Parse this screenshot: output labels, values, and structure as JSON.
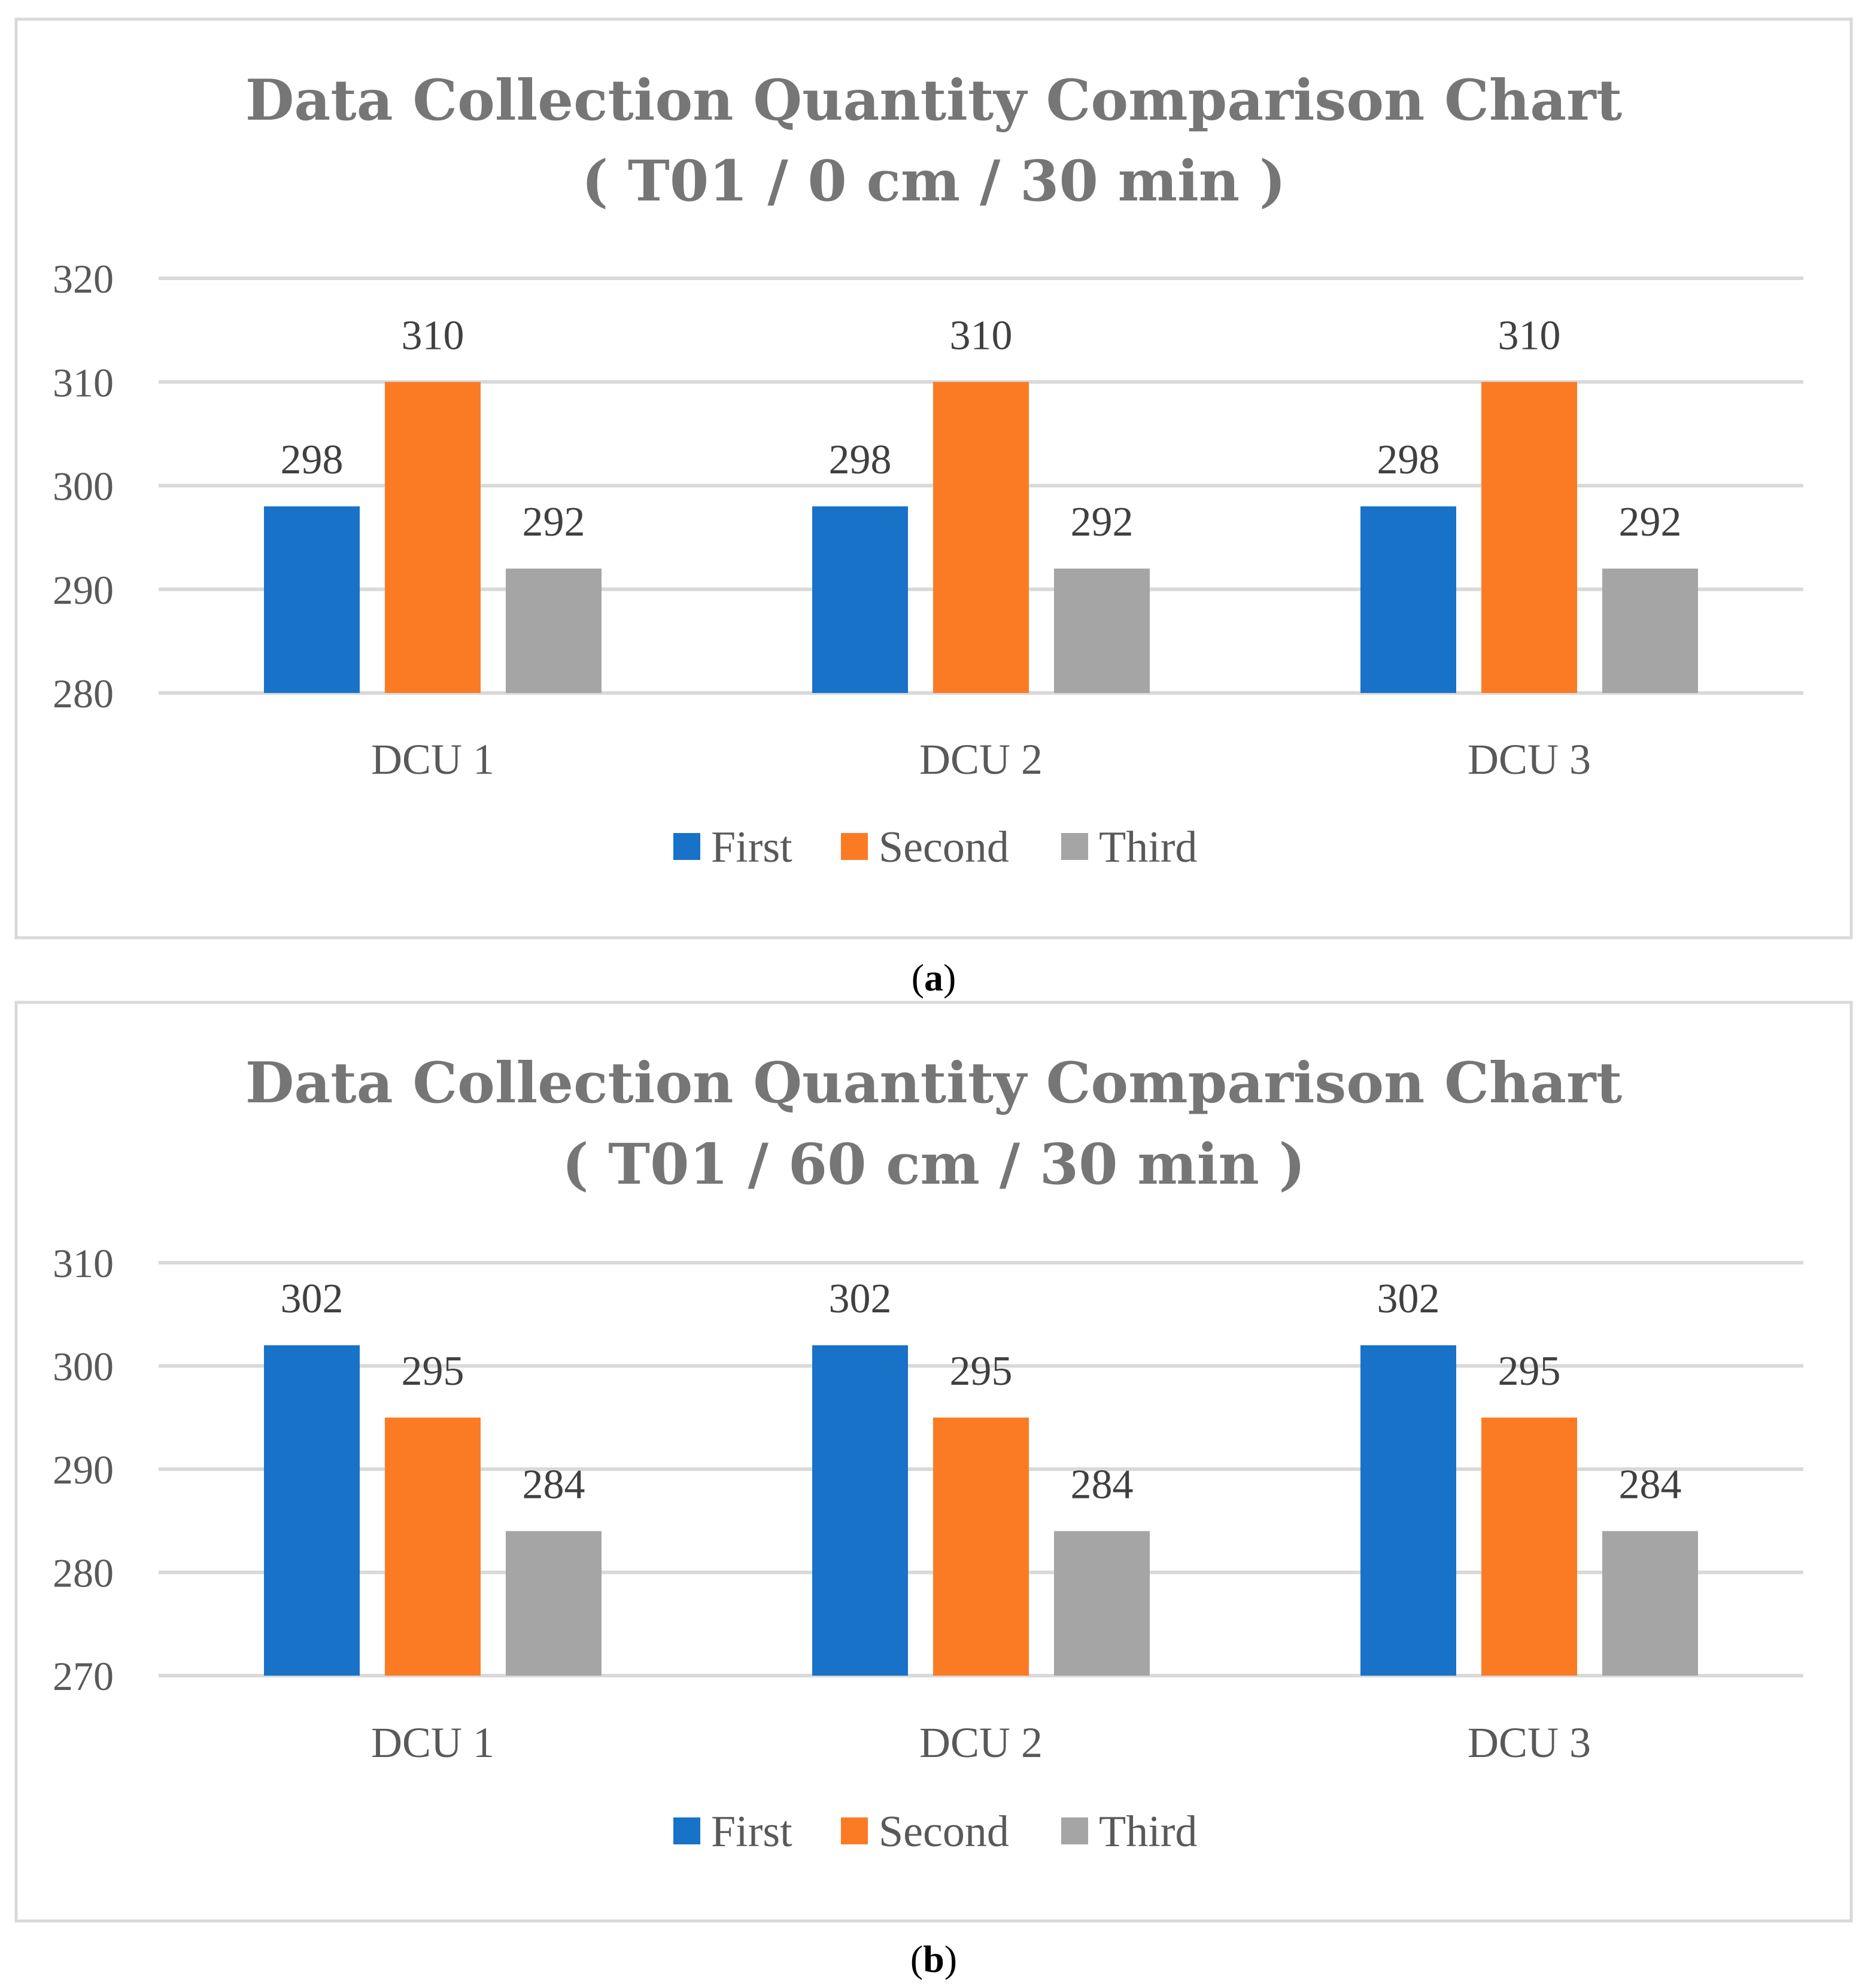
{
  "chart_data": [
    {
      "type": "bar",
      "title": "Data Collection Quantity Comparison Chart",
      "subtitle": "( T01 / 0 cm / 30 min )",
      "categories": [
        "DCU 1",
        "DCU 2",
        "DCU 3"
      ],
      "series": [
        {
          "name": "First",
          "values": [
            298,
            298,
            298
          ]
        },
        {
          "name": "Second",
          "values": [
            310,
            310,
            310
          ]
        },
        {
          "name": "Third",
          "values": [
            292,
            292,
            292
          ]
        }
      ],
      "ylim": [
        280,
        320
      ],
      "yticks": [
        280,
        290,
        300,
        310,
        320
      ],
      "xlabel": "",
      "ylabel": "",
      "grid": true,
      "legend": "bottom",
      "caption": "a"
    },
    {
      "type": "bar",
      "title": "Data Collection Quantity Comparison Chart",
      "subtitle": "( T01 / 60 cm / 30 min )",
      "categories": [
        "DCU 1",
        "DCU 2",
        "DCU 3"
      ],
      "series": [
        {
          "name": "First",
          "values": [
            302,
            302,
            302
          ]
        },
        {
          "name": "Second",
          "values": [
            295,
            295,
            295
          ]
        },
        {
          "name": "Third",
          "values": [
            284,
            284,
            284
          ]
        }
      ],
      "ylim": [
        270,
        310
      ],
      "yticks": [
        270,
        280,
        290,
        300,
        310
      ],
      "xlabel": "",
      "ylabel": "",
      "grid": true,
      "legend": "bottom",
      "caption": "b"
    }
  ],
  "colors": {
    "First": "#1872C8",
    "Second": "#FB7B25",
    "Third": "#A5A5A5",
    "grid": "#D9D9D9",
    "border": "#D9D9D9"
  }
}
